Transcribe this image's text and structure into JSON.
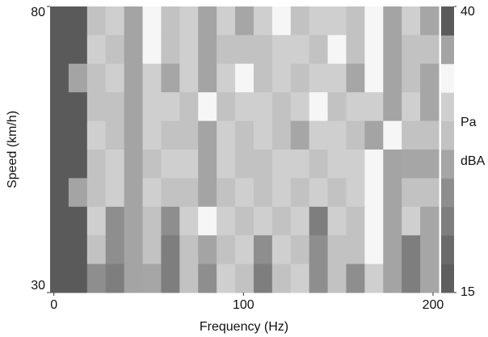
{
  "chart_data": {
    "type": "heatmap",
    "x_label": "Frequency (Hz)",
    "y_label": "Speed (km/h)",
    "xlim": [
      -2,
      203
    ],
    "xticks": [
      0,
      100,
      200
    ],
    "ylim": [
      30,
      80
    ],
    "yticks": [
      30,
      80
    ],
    "zlim": [
      15,
      40
    ],
    "zticks": [
      15,
      40
    ],
    "colorbar_labels": [
      "Pa",
      "dBA"
    ],
    "colormap": [
      "#5e5e5e",
      "#6a6a6a",
      "#7e7e7e",
      "#8e8e8e",
      "#a6a6a6",
      "#c2c2c2",
      "#cfcfcf",
      "#f6f6f6",
      "#a4a4a4",
      "#5a5a5a"
    ],
    "z": [
      [
        38,
        38,
        29,
        31,
        37,
        33,
        28,
        30,
        36,
        31,
        27,
        30,
        33,
        28,
        30,
        32,
        29,
        34,
        36,
        30,
        27
      ],
      [
        38,
        38,
        30,
        28,
        36,
        34,
        29,
        31,
        35,
        28,
        28,
        29,
        31,
        30,
        29,
        33,
        28,
        33,
        35,
        29,
        28
      ],
      [
        38,
        37,
        28,
        30,
        37,
        32,
        27,
        30,
        36,
        30,
        33,
        28,
        30,
        29,
        31,
        30,
        27,
        34,
        37,
        28,
        26
      ],
      [
        38,
        38,
        29,
        29,
        36,
        31,
        30,
        29,
        34,
        29,
        30,
        31,
        28,
        30,
        33,
        29,
        30,
        32,
        36,
        30,
        27
      ],
      [
        38,
        38,
        31,
        28,
        35,
        30,
        29,
        28,
        37,
        31,
        28,
        30,
        29,
        27,
        30,
        31,
        29,
        35,
        34,
        29,
        28
      ],
      [
        38,
        38,
        28,
        30,
        36,
        29,
        31,
        30,
        35,
        30,
        29,
        28,
        32,
        30,
        28,
        30,
        31,
        33,
        36,
        27,
        26
      ],
      [
        38,
        37,
        29,
        31,
        37,
        30,
        28,
        29,
        36,
        28,
        30,
        29,
        30,
        29,
        31,
        28,
        30,
        34,
        35,
        29,
        28
      ],
      [
        38,
        38,
        30,
        24,
        35,
        29,
        23,
        30,
        34,
        30,
        28,
        31,
        29,
        30,
        22,
        30,
        29,
        33,
        37,
        30,
        27
      ],
      [
        38,
        38,
        29,
        23,
        36,
        28,
        22,
        29,
        35,
        29,
        30,
        24,
        30,
        28,
        23,
        29,
        28,
        34,
        36,
        22,
        26
      ],
      [
        38,
        38,
        24,
        22,
        37,
        27,
        21,
        28,
        23,
        30,
        29,
        22,
        28,
        30,
        24,
        28,
        23,
        31,
        36,
        21,
        27
      ]
    ]
  }
}
